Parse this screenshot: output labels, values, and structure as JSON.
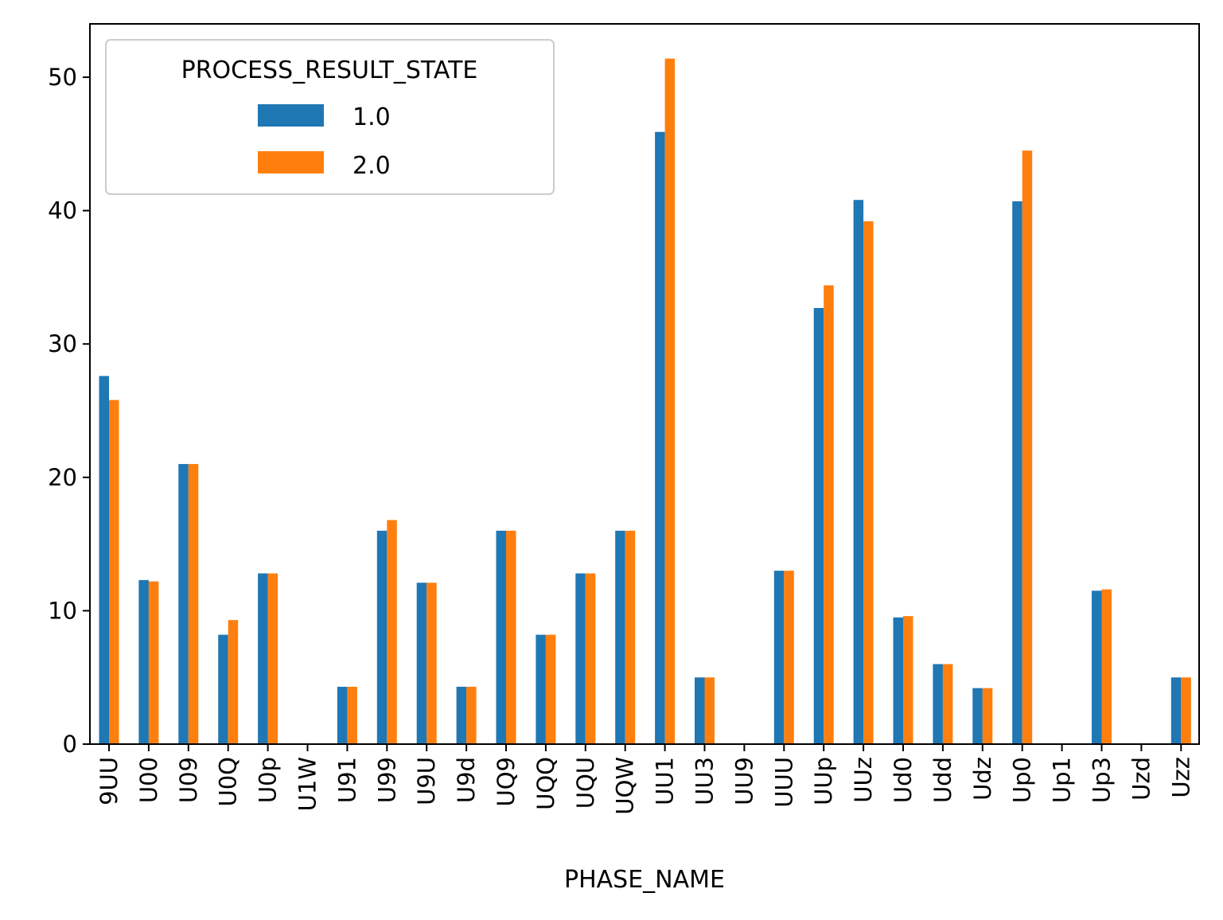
{
  "chart_data": {
    "type": "bar",
    "title": "",
    "xlabel": "PHASE_NAME",
    "ylabel": "",
    "ylim": [
      0,
      54
    ],
    "yticks": [
      0,
      10,
      20,
      30,
      40,
      50
    ],
    "grid": false,
    "legend": {
      "title": "PROCESS_RESULT_STATE",
      "placement": "top-left"
    },
    "categories": [
      "9UU",
      "U00",
      "U09",
      "U0Q",
      "U0p",
      "U1W",
      "U91",
      "U99",
      "U9U",
      "U9d",
      "UQ9",
      "UQQ",
      "UQU",
      "UQW",
      "UU1",
      "UU3",
      "UU9",
      "UUU",
      "UUp",
      "UUz",
      "Ud0",
      "Udd",
      "Udz",
      "Up0",
      "Up1",
      "Up3",
      "Uzd",
      "Uzz"
    ],
    "series": [
      {
        "name": "1.0",
        "color": "#1f77b4",
        "values": [
          27.6,
          12.3,
          21.0,
          8.2,
          12.8,
          0,
          4.3,
          16.0,
          12.1,
          4.3,
          16.0,
          8.2,
          12.8,
          16.0,
          45.9,
          5.0,
          0,
          13.0,
          32.7,
          40.8,
          9.5,
          6.0,
          4.2,
          40.7,
          0,
          11.5,
          0,
          5.0
        ]
      },
      {
        "name": "2.0",
        "color": "#ff7f0e",
        "values": [
          25.8,
          12.2,
          21.0,
          9.3,
          12.8,
          0,
          4.3,
          16.8,
          12.1,
          4.3,
          16.0,
          8.2,
          12.8,
          16.0,
          51.4,
          5.0,
          0,
          13.0,
          34.4,
          39.2,
          9.6,
          6.0,
          4.2,
          44.5,
          0,
          11.6,
          0,
          5.0
        ]
      }
    ]
  }
}
